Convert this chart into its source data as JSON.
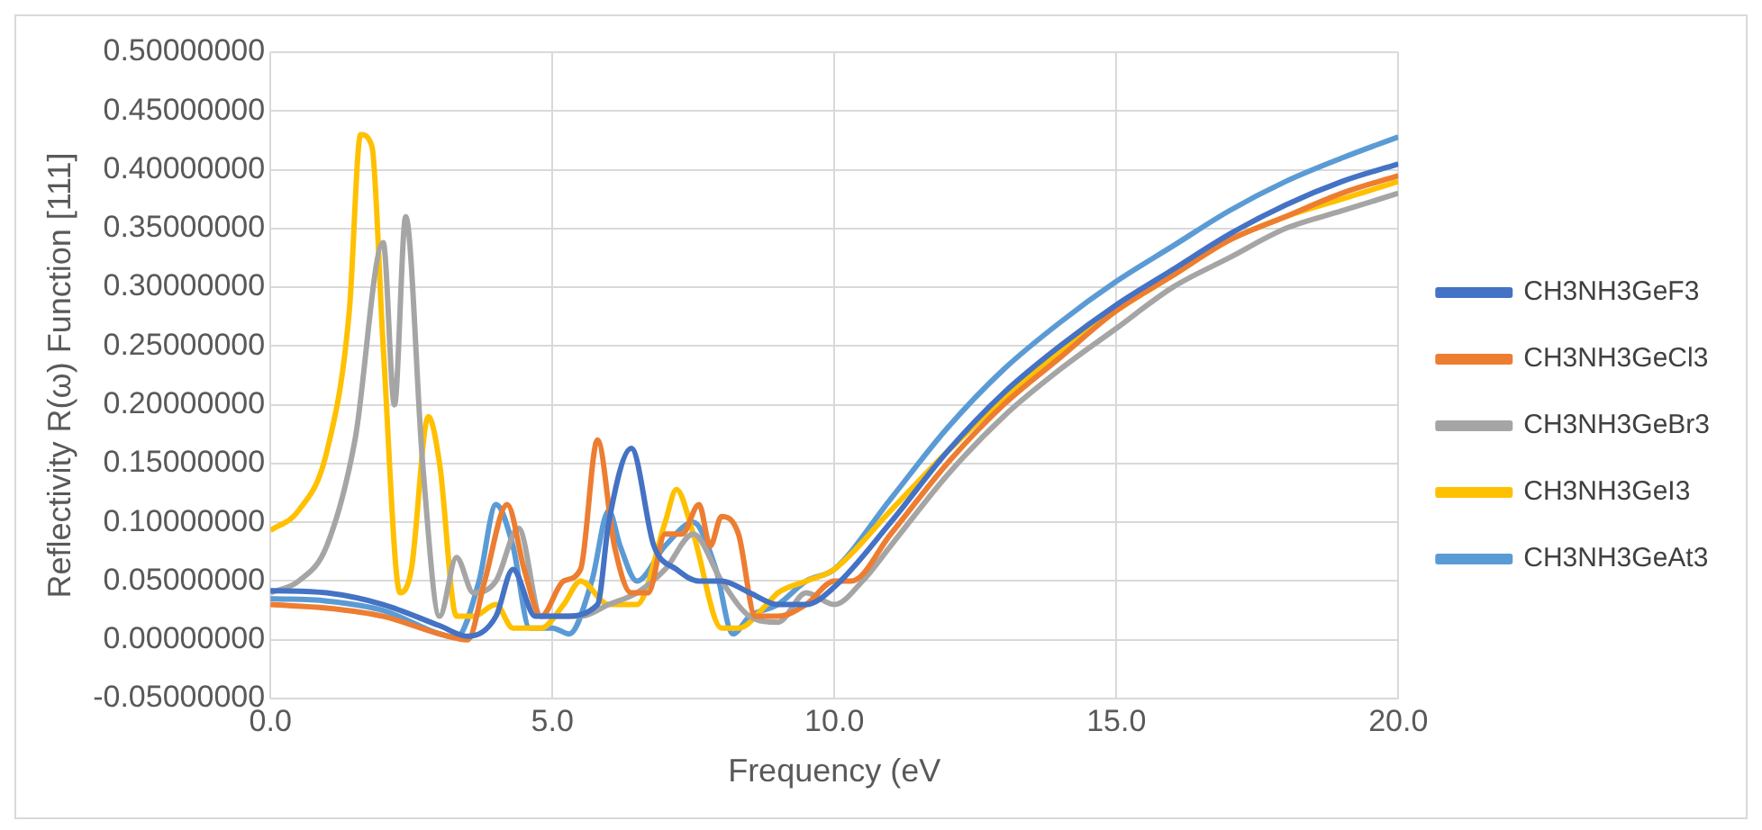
{
  "chart_data": {
    "type": "line",
    "xlabel": "Frequency (eV",
    "ylabel": "Reflectivity R(ω) Function [111]",
    "xlim": [
      0,
      20
    ],
    "ylim": [
      -0.05,
      0.5
    ],
    "xticks": [
      {
        "value": 0,
        "label": "0.0"
      },
      {
        "value": 5,
        "label": "5.0"
      },
      {
        "value": 10,
        "label": "10.0"
      },
      {
        "value": 15,
        "label": "15.0"
      },
      {
        "value": 20,
        "label": "20.0"
      }
    ],
    "yticks": [
      {
        "value": -0.05,
        "label": "-0.05000000"
      },
      {
        "value": 0,
        "label": "0.00000000"
      },
      {
        "value": 0.05,
        "label": "0.05000000"
      },
      {
        "value": 0.1,
        "label": "0.10000000"
      },
      {
        "value": 0.15,
        "label": "0.15000000"
      },
      {
        "value": 0.2,
        "label": "0.20000000"
      },
      {
        "value": 0.25,
        "label": "0.25000000"
      },
      {
        "value": 0.3,
        "label": "0.30000000"
      },
      {
        "value": 0.35,
        "label": "0.35000000"
      },
      {
        "value": 0.4,
        "label": "0.40000000"
      },
      {
        "value": 0.45,
        "label": "0.45000000"
      },
      {
        "value": 0.5,
        "label": "0.50000000"
      }
    ],
    "grid": true,
    "legend": "right",
    "marker": "none",
    "line_style": "solid",
    "series": [
      {
        "name": "CH3NH3GeF3",
        "color": "#4472c4",
        "x": [
          0,
          1,
          2,
          3,
          3.5,
          4,
          4.3,
          4.7,
          5.2,
          5.8,
          6,
          6.4,
          6.8,
          7.2,
          7.6,
          8,
          8.5,
          9,
          9.5,
          10,
          11,
          12,
          13,
          14,
          15,
          16,
          17,
          18,
          19,
          20
        ],
        "values": [
          0.042,
          0.04,
          0.03,
          0.012,
          0.003,
          0.02,
          0.06,
          0.02,
          0.02,
          0.03,
          0.1,
          0.163,
          0.08,
          0.06,
          0.05,
          0.05,
          0.04,
          0.03,
          0.03,
          0.045,
          0.1,
          0.16,
          0.21,
          0.25,
          0.285,
          0.315,
          0.345,
          0.37,
          0.39,
          0.405
        ]
      },
      {
        "name": "CH3NH3GeCl3",
        "color": "#ed7d31",
        "x": [
          0,
          1,
          2,
          3,
          3.5,
          3.8,
          4.2,
          4.5,
          4.8,
          5.2,
          5.5,
          5.8,
          6.1,
          6.4,
          6.7,
          7,
          7.3,
          7.6,
          7.8,
          8,
          8.3,
          8.6,
          9,
          9.5,
          10,
          10.3,
          11,
          12,
          13,
          14,
          15,
          16,
          17,
          18,
          19,
          20
        ],
        "values": [
          0.03,
          0.027,
          0.02,
          0.005,
          0,
          0.05,
          0.115,
          0.06,
          0.02,
          0.05,
          0.06,
          0.17,
          0.08,
          0.04,
          0.04,
          0.09,
          0.09,
          0.115,
          0.08,
          0.105,
          0.09,
          0.02,
          0.02,
          0.03,
          0.05,
          0.05,
          0.09,
          0.15,
          0.2,
          0.24,
          0.28,
          0.31,
          0.34,
          0.36,
          0.38,
          0.395
        ]
      },
      {
        "name": "CH3NH3GeBr3",
        "color": "#a5a5a5",
        "x": [
          0,
          0.5,
          1,
          1.5,
          2,
          2.2,
          2.4,
          2.7,
          3,
          3.3,
          3.6,
          4,
          4.4,
          4.8,
          5,
          5.5,
          6,
          6.5,
          7,
          7.5,
          8,
          8.5,
          9,
          9.5,
          10,
          10.5,
          11,
          12,
          13,
          14,
          15,
          16,
          17,
          18,
          19,
          20
        ],
        "values": [
          0.04,
          0.05,
          0.08,
          0.17,
          0.338,
          0.2,
          0.36,
          0.15,
          0.02,
          0.07,
          0.04,
          0.05,
          0.095,
          0.02,
          0.02,
          0.02,
          0.03,
          0.04,
          0.06,
          0.09,
          0.05,
          0.02,
          0.015,
          0.04,
          0.03,
          0.05,
          0.08,
          0.14,
          0.19,
          0.23,
          0.265,
          0.3,
          0.325,
          0.35,
          0.365,
          0.38
        ]
      },
      {
        "name": "CH3NH3GeI3",
        "color": "#ffc000",
        "x": [
          0,
          0.5,
          1,
          1.4,
          1.6,
          1.8,
          2,
          2.3,
          2.5,
          2.8,
          3,
          3.3,
          3.6,
          4,
          4.3,
          4.8,
          5.2,
          5.5,
          6,
          6.5,
          7,
          7.2,
          7.5,
          8,
          8.3,
          8.8,
          9,
          9.5,
          10,
          11,
          12,
          13,
          14,
          15,
          16,
          17,
          18,
          19,
          20
        ],
        "values": [
          0.093,
          0.11,
          0.16,
          0.28,
          0.43,
          0.42,
          0.25,
          0.04,
          0.06,
          0.19,
          0.15,
          0.02,
          0.02,
          0.03,
          0.01,
          0.01,
          0.03,
          0.05,
          0.03,
          0.03,
          0.1,
          0.128,
          0.09,
          0.01,
          0.01,
          0.03,
          0.04,
          0.05,
          0.06,
          0.11,
          0.16,
          0.205,
          0.245,
          0.28,
          0.31,
          0.34,
          0.36,
          0.375,
          0.39
        ]
      },
      {
        "name": "CH3NH3GeAt3",
        "color": "#5b9bd5",
        "x": [
          0,
          1,
          2,
          3,
          3.3,
          3.7,
          4,
          4.3,
          4.6,
          5,
          5.3,
          5.7,
          6,
          6.2,
          6.5,
          7,
          7.5,
          7.9,
          8.2,
          8.5,
          9,
          9.5,
          10,
          11,
          12,
          13,
          14,
          15,
          16,
          17,
          18,
          19,
          20
        ],
        "values": [
          0.035,
          0.033,
          0.025,
          0.005,
          0.002,
          0.05,
          0.115,
          0.08,
          0.01,
          0.01,
          0.005,
          0.05,
          0.11,
          0.08,
          0.05,
          0.08,
          0.1,
          0.06,
          0.005,
          0.02,
          0.03,
          0.05,
          0.06,
          0.12,
          0.18,
          0.23,
          0.27,
          0.305,
          0.335,
          0.365,
          0.39,
          0.41,
          0.428
        ]
      }
    ]
  }
}
